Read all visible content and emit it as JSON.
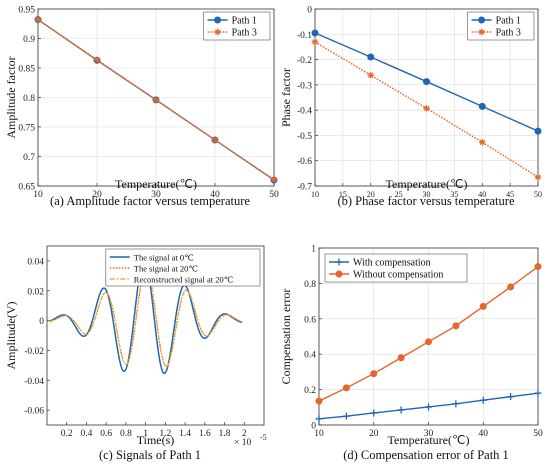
{
  "chart_data": [
    {
      "type": "line",
      "caption": "(a) Amplitude factor versus temperature",
      "xlabel": "Temperature(℃)",
      "ylabel": "Amplitude factor",
      "xlim": [
        10,
        50
      ],
      "ylim": [
        0.65,
        0.95
      ],
      "xticks": [
        "10",
        "20",
        "30",
        "40",
        "50"
      ],
      "yticks": [
        "0.65",
        "0.7",
        "0.75",
        "0.8",
        "0.85",
        "0.9",
        "0.95"
      ],
      "x": [
        10,
        20,
        30,
        40,
        50
      ],
      "series": [
        {
          "name": "Path 1",
          "values": [
            0.932,
            0.863,
            0.796,
            0.728,
            0.66
          ],
          "color": "#2166b5",
          "marker": "circle"
        },
        {
          "name": "Path 3",
          "values": [
            0.932,
            0.864,
            0.796,
            0.728,
            0.661
          ],
          "color": "#e8652b",
          "marker": "star"
        }
      ],
      "legend": "top-right",
      "grid": true
    },
    {
      "type": "line",
      "caption": "(b) Phase factor versus temperature",
      "xlabel": "Temperature(℃)",
      "ylabel": "Phase factor",
      "xlim": [
        10,
        50
      ],
      "ylim": [
        -0.7,
        0
      ],
      "xticks": [
        "10",
        "15",
        "20",
        "25",
        "30",
        "35",
        "40",
        "45",
        "50"
      ],
      "yticks": [
        "-0.7",
        "-0.6",
        "-0.5",
        "-0.4",
        "-0.3",
        "-0.2",
        "-0.1",
        "0"
      ],
      "x": [
        10,
        20,
        30,
        40,
        50
      ],
      "series": [
        {
          "name": "Path 1",
          "values": [
            -0.095,
            -0.19,
            -0.287,
            -0.385,
            -0.483
          ],
          "color": "#2166b5",
          "marker": "circle"
        },
        {
          "name": "Path 3",
          "values": [
            -0.13,
            -0.262,
            -0.393,
            -0.527,
            -0.665
          ],
          "color": "#e8652b",
          "marker": "star"
        }
      ],
      "legend": "top-right",
      "grid": true
    },
    {
      "type": "line",
      "caption": "(c) Signals of Path 1",
      "xlabel": "Time(s)",
      "ylabel": "Amplitude(V)",
      "x_multiplier": "× 10",
      "x_exponent": "-5",
      "xlim": [
        0,
        2.2
      ],
      "ylim": [
        -0.07,
        0.05
      ],
      "xticks": [
        "0.2",
        "0.4",
        "0.6",
        "0.8",
        "1",
        "1.2",
        "1.4",
        "1.6",
        "1.8",
        "2"
      ],
      "yticks": [
        "-0.06",
        "-0.04",
        "-0.02",
        "0",
        "0.02",
        "0.04"
      ],
      "series": [
        {
          "name": "The signal at 0℃",
          "color": "#2166b5",
          "amplitude": 0.04,
          "delay": 0.0,
          "style": "solid"
        },
        {
          "name": "The signal at 20℃",
          "color": "#e8652b",
          "amplitude": 0.0345,
          "delay": 0.02,
          "style": "dotted"
        },
        {
          "name": "Reconstructed signal at 20℃",
          "color": "#f0b030",
          "amplitude": 0.0345,
          "delay": 0.02,
          "style": "dashdot"
        }
      ],
      "legend": "top-right",
      "grid": false
    },
    {
      "type": "line",
      "caption": "(d) Compensation error of Path 1",
      "xlabel": "Temperature(℃)",
      "ylabel": "Compensation error",
      "xlim": [
        10,
        50
      ],
      "ylim": [
        0,
        1
      ],
      "xticks": [
        "10",
        "20",
        "30",
        "40",
        "50"
      ],
      "yticks": [
        "0",
        "0.2",
        "0.4",
        "0.6",
        "0.8",
        "1"
      ],
      "x": [
        10,
        15,
        20,
        25,
        30,
        35,
        40,
        45,
        50
      ],
      "series": [
        {
          "name": "With compensation",
          "values": [
            0.035,
            0.05,
            0.068,
            0.085,
            0.102,
            0.12,
            0.14,
            0.16,
            0.18
          ],
          "color": "#2166b5",
          "marker": "plus"
        },
        {
          "name": "Without compensation",
          "values": [
            0.135,
            0.21,
            0.29,
            0.38,
            0.47,
            0.56,
            0.67,
            0.78,
            0.895
          ],
          "color": "#e8652b",
          "marker": "circle"
        }
      ],
      "legend": "top-left",
      "grid": true
    }
  ]
}
